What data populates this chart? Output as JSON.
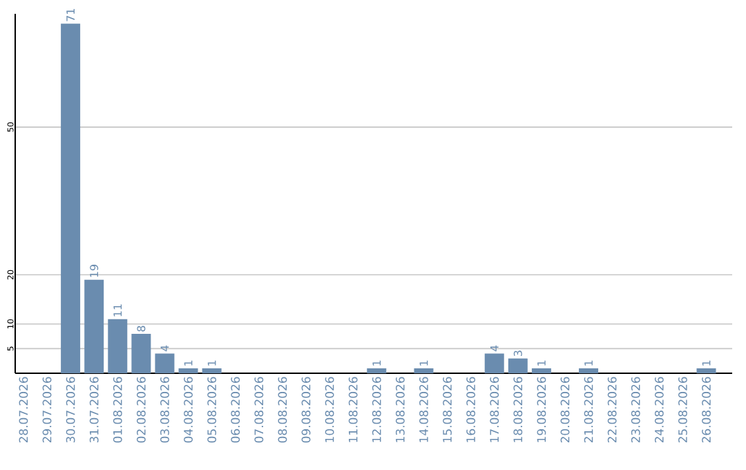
{
  "chart_data": {
    "type": "bar",
    "categories": [
      "28.07.2026",
      "29.07.2026",
      "30.07.2026",
      "31.07.2026",
      "01.08.2026",
      "02.08.2026",
      "03.08.2026",
      "04.08.2026",
      "05.08.2026",
      "06.08.2026",
      "07.08.2026",
      "08.08.2026",
      "09.08.2026",
      "10.08.2026",
      "11.08.2026",
      "12.08.2026",
      "13.08.2026",
      "14.08.2026",
      "15.08.2026",
      "16.08.2026",
      "17.08.2026",
      "18.08.2026",
      "19.08.2026",
      "20.08.2026",
      "21.08.2026",
      "22.08.2026",
      "23.08.2026",
      "24.08.2026",
      "25.08.2026",
      "26.08.2026"
    ],
    "values": [
      0,
      0,
      71,
      19,
      11,
      8,
      4,
      1,
      1,
      0,
      0,
      0,
      0,
      0,
      0,
      1,
      0,
      1,
      0,
      0,
      4,
      3,
      1,
      0,
      1,
      0,
      0,
      0,
      0,
      1
    ],
    "value_labels": [
      null,
      null,
      "71",
      "19",
      "11",
      "8",
      "4",
      "1",
      "1",
      null,
      null,
      null,
      null,
      null,
      null,
      "1",
      null,
      "1",
      null,
      null,
      "4",
      "3",
      "1",
      null,
      "1",
      null,
      null,
      null,
      null,
      "1"
    ],
    "color": "#6a8caf",
    "ylim": [
      0,
      73
    ],
    "yticks": [
      5,
      10,
      20,
      50
    ],
    "grid": "y"
  }
}
